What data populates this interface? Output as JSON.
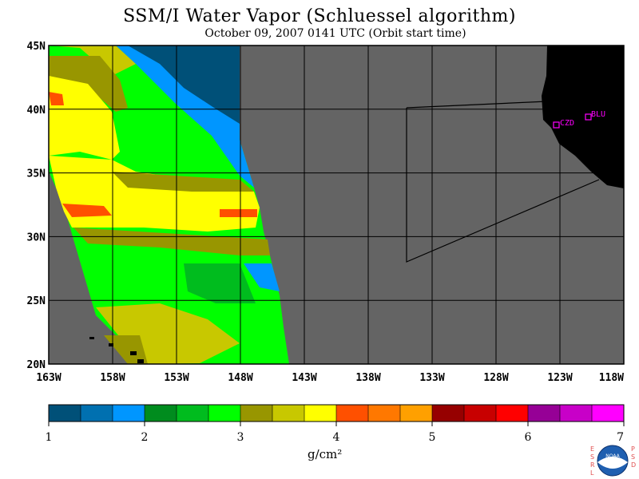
{
  "title": "SSM/I Water Vapor (Schluessel algorithm)",
  "subtitle": "October 09, 2007  0141 UTC  (Orbit start time)",
  "map": {
    "lat_labels": [
      "45N",
      "40N",
      "35N",
      "30N",
      "25N",
      "20N"
    ],
    "lon_labels": [
      "163W",
      "158W",
      "153W",
      "148W",
      "143W",
      "138W",
      "133W",
      "128W",
      "123W",
      "118W"
    ],
    "lat_range": [
      20,
      45
    ],
    "lon_range": [
      -163,
      -118
    ],
    "station_labels": [
      "CZD",
      "BLU"
    ],
    "colors": {
      "land": "#000000",
      "ocean_no_data": "#646464",
      "station_marker": "#ff00ff",
      "grid": "#000000"
    }
  },
  "colorbar": {
    "ticks": [
      "1",
      "2",
      "3",
      "4",
      "5",
      "6",
      "7"
    ],
    "unit": "g/cm²",
    "colors": [
      "#005078",
      "#0070b0",
      "#0096ff",
      "#008c1e",
      "#00bc1e",
      "#00ff00",
      "#989600",
      "#c8c800",
      "#ffff00",
      "#ff5000",
      "#ff7800",
      "#ffa000",
      "#960000",
      "#c80000",
      "#ff0000",
      "#960096",
      "#c800c8",
      "#ff00ff"
    ]
  },
  "logo": {
    "left_text": "ESRL",
    "right_text": "PSD",
    "center_text": "NOAA"
  }
}
